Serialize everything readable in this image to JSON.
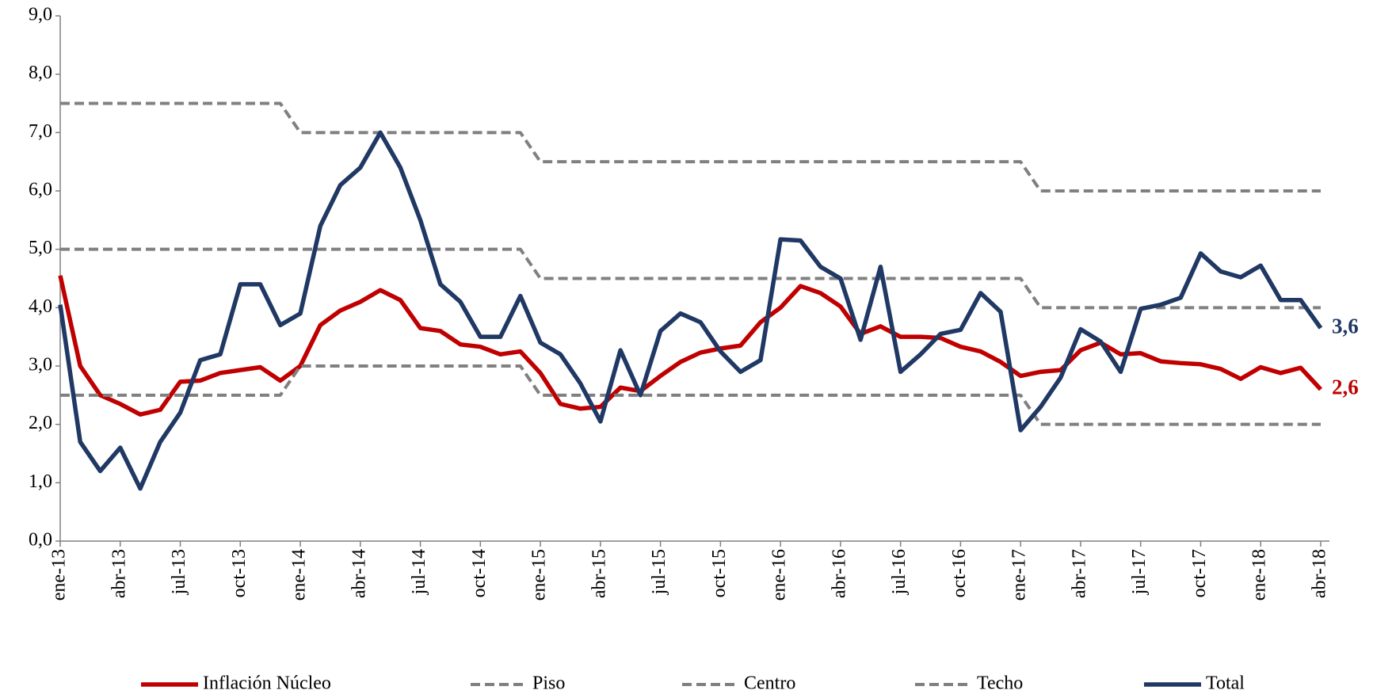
{
  "chart_data": {
    "type": "line",
    "categories": [
      "ene-13",
      null,
      null,
      "abr-13",
      null,
      null,
      "jul-13",
      null,
      null,
      "oct-13",
      null,
      null,
      "ene-14",
      null,
      null,
      "abr-14",
      null,
      null,
      "jul-14",
      null,
      null,
      "oct-14",
      null,
      null,
      "ene-15",
      null,
      null,
      "abr-15",
      null,
      null,
      "jul-15",
      null,
      null,
      "oct-15",
      null,
      null,
      "ene-16",
      null,
      null,
      "abr-16",
      null,
      null,
      "jul-16",
      null,
      null,
      "oct-16",
      null,
      null,
      "ene-17",
      null,
      null,
      "abr-17",
      null,
      null,
      "jul-17",
      null,
      null,
      "oct-17",
      null,
      null,
      "ene-18",
      null,
      null,
      "abr-18"
    ],
    "ylim": [
      0,
      9
    ],
    "yticks": [
      {
        "value": 0,
        "label": "0,0"
      },
      {
        "value": 1,
        "label": "1,0"
      },
      {
        "value": 2,
        "label": "2,0"
      },
      {
        "value": 3,
        "label": "3,0"
      },
      {
        "value": 4,
        "label": "4,0"
      },
      {
        "value": 5,
        "label": "5,0"
      },
      {
        "value": 6,
        "label": "6,0"
      },
      {
        "value": 7,
        "label": "7,0"
      },
      {
        "value": 8,
        "label": "8,0"
      },
      {
        "value": 9,
        "label": "9,0"
      }
    ],
    "grid": false,
    "legend": "bottom",
    "series": [
      {
        "name": "Inflación Núcleo",
        "color": "#c00000",
        "dashed": false,
        "values": [
          4.55,
          3.0,
          2.5,
          2.35,
          2.17,
          2.25,
          2.73,
          2.75,
          2.88,
          2.93,
          2.98,
          2.75,
          3.0,
          3.7,
          3.95,
          4.1,
          4.3,
          4.13,
          3.65,
          3.6,
          3.37,
          3.33,
          3.2,
          3.25,
          2.88,
          2.35,
          2.27,
          2.3,
          2.63,
          2.57,
          2.83,
          3.07,
          3.23,
          3.3,
          3.35,
          3.75,
          4.0,
          4.37,
          4.25,
          4.02,
          3.55,
          3.68,
          3.5,
          3.5,
          3.48,
          3.33,
          3.25,
          3.07,
          2.83,
          2.9,
          2.93,
          3.27,
          3.4,
          3.2,
          3.22,
          3.08,
          3.05,
          3.03,
          2.95,
          2.78,
          2.98,
          2.88,
          2.97,
          2.6
        ],
        "value_labels": [
          null,
          null,
          null,
          null,
          null,
          null,
          null,
          null,
          null,
          null,
          null,
          null,
          null,
          null,
          null,
          null,
          null,
          null,
          null,
          null,
          null,
          null,
          null,
          null,
          null,
          null,
          null,
          null,
          null,
          null,
          null,
          null,
          null,
          null,
          null,
          null,
          null,
          null,
          null,
          null,
          null,
          null,
          null,
          null,
          null,
          null,
          null,
          null,
          null,
          null,
          null,
          null,
          null,
          null,
          null,
          null,
          null,
          null,
          null,
          null,
          null,
          null,
          null,
          "2,6"
        ]
      },
      {
        "name": "Piso",
        "color": "#808080",
        "dashed": true,
        "values": [
          2.5,
          2.5,
          2.5,
          2.5,
          2.5,
          2.5,
          2.5,
          2.5,
          2.5,
          2.5,
          2.5,
          2.5,
          3.0,
          3.0,
          3.0,
          3.0,
          3.0,
          3.0,
          3.0,
          3.0,
          3.0,
          3.0,
          3.0,
          3.0,
          2.5,
          2.5,
          2.5,
          2.5,
          2.5,
          2.5,
          2.5,
          2.5,
          2.5,
          2.5,
          2.5,
          2.5,
          2.5,
          2.5,
          2.5,
          2.5,
          2.5,
          2.5,
          2.5,
          2.5,
          2.5,
          2.5,
          2.5,
          2.5,
          2.5,
          2.0,
          2.0,
          2.0,
          2.0,
          2.0,
          2.0,
          2.0,
          2.0,
          2.0,
          2.0,
          2.0,
          2.0,
          2.0,
          2.0,
          2.0
        ]
      },
      {
        "name": "Centro",
        "color": "#808080",
        "dashed": true,
        "values": [
          5.0,
          5.0,
          5.0,
          5.0,
          5.0,
          5.0,
          5.0,
          5.0,
          5.0,
          5.0,
          5.0,
          5.0,
          5.0,
          5.0,
          5.0,
          5.0,
          5.0,
          5.0,
          5.0,
          5.0,
          5.0,
          5.0,
          5.0,
          5.0,
          4.5,
          4.5,
          4.5,
          4.5,
          4.5,
          4.5,
          4.5,
          4.5,
          4.5,
          4.5,
          4.5,
          4.5,
          4.5,
          4.5,
          4.5,
          4.5,
          4.5,
          4.5,
          4.5,
          4.5,
          4.5,
          4.5,
          4.5,
          4.5,
          4.5,
          4.0,
          4.0,
          4.0,
          4.0,
          4.0,
          4.0,
          4.0,
          4.0,
          4.0,
          4.0,
          4.0,
          4.0,
          4.0,
          4.0,
          4.0
        ]
      },
      {
        "name": "Techo",
        "color": "#808080",
        "dashed": true,
        "values": [
          7.5,
          7.5,
          7.5,
          7.5,
          7.5,
          7.5,
          7.5,
          7.5,
          7.5,
          7.5,
          7.5,
          7.5,
          7.0,
          7.0,
          7.0,
          7.0,
          7.0,
          7.0,
          7.0,
          7.0,
          7.0,
          7.0,
          7.0,
          7.0,
          6.5,
          6.5,
          6.5,
          6.5,
          6.5,
          6.5,
          6.5,
          6.5,
          6.5,
          6.5,
          6.5,
          6.5,
          6.5,
          6.5,
          6.5,
          6.5,
          6.5,
          6.5,
          6.5,
          6.5,
          6.5,
          6.5,
          6.5,
          6.5,
          6.5,
          6.0,
          6.0,
          6.0,
          6.0,
          6.0,
          6.0,
          6.0,
          6.0,
          6.0,
          6.0,
          6.0,
          6.0,
          6.0,
          6.0,
          6.0
        ]
      },
      {
        "name": "Total",
        "color": "#1f3864",
        "dashed": false,
        "values": [
          4.05,
          1.7,
          1.2,
          1.6,
          0.9,
          1.7,
          2.2,
          3.1,
          3.2,
          4.4,
          4.4,
          3.7,
          3.9,
          5.4,
          6.1,
          6.4,
          7.0,
          6.4,
          5.5,
          4.4,
          4.1,
          3.5,
          3.5,
          4.2,
          3.4,
          3.2,
          2.7,
          2.05,
          3.27,
          2.5,
          3.6,
          3.9,
          3.75,
          3.25,
          2.9,
          3.1,
          5.17,
          5.15,
          4.7,
          4.5,
          3.45,
          4.7,
          2.9,
          3.2,
          3.55,
          3.62,
          4.25,
          3.93,
          1.9,
          2.3,
          2.8,
          3.63,
          3.42,
          2.9,
          3.98,
          4.05,
          4.17,
          4.93,
          4.62,
          4.52,
          4.72,
          4.13,
          4.13,
          3.65
        ],
        "value_labels": [
          null,
          null,
          null,
          null,
          null,
          null,
          null,
          null,
          null,
          null,
          null,
          null,
          null,
          null,
          null,
          null,
          null,
          null,
          null,
          null,
          null,
          null,
          null,
          null,
          null,
          null,
          null,
          null,
          null,
          null,
          null,
          null,
          null,
          null,
          null,
          null,
          null,
          null,
          null,
          null,
          null,
          null,
          null,
          null,
          null,
          null,
          null,
          null,
          null,
          null,
          null,
          null,
          null,
          null,
          null,
          null,
          null,
          null,
          null,
          null,
          null,
          null,
          null,
          "3,6"
        ]
      }
    ]
  }
}
